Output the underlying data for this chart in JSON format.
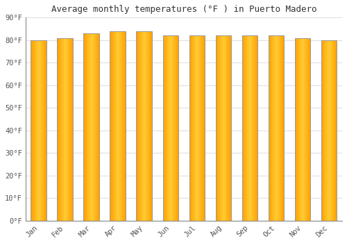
{
  "title": "Average monthly temperatures (°F ) in Puerto Madero",
  "months": [
    "Jan",
    "Feb",
    "Mar",
    "Apr",
    "May",
    "Jun",
    "Jul",
    "Aug",
    "Sep",
    "Oct",
    "Nov",
    "Dec"
  ],
  "values": [
    80,
    81,
    83,
    84,
    84,
    82,
    82,
    82,
    82,
    82,
    81,
    80
  ],
  "bar_color_center": "#FFCC33",
  "bar_color_edge": "#F5A623",
  "bar_border_color": "#999999",
  "background_color": "#FFFFFF",
  "grid_color": "#E0E0E0",
  "ylim": [
    0,
    90
  ],
  "yticks": [
    0,
    10,
    20,
    30,
    40,
    50,
    60,
    70,
    80,
    90
  ],
  "ytick_labels": [
    "0°F",
    "10°F",
    "20°F",
    "30°F",
    "40°F",
    "50°F",
    "60°F",
    "70°F",
    "80°F",
    "90°F"
  ],
  "title_fontsize": 9,
  "tick_fontsize": 7.5,
  "font_family": "monospace",
  "bar_width": 0.6,
  "figsize": [
    5.0,
    3.5
  ],
  "dpi": 100
}
